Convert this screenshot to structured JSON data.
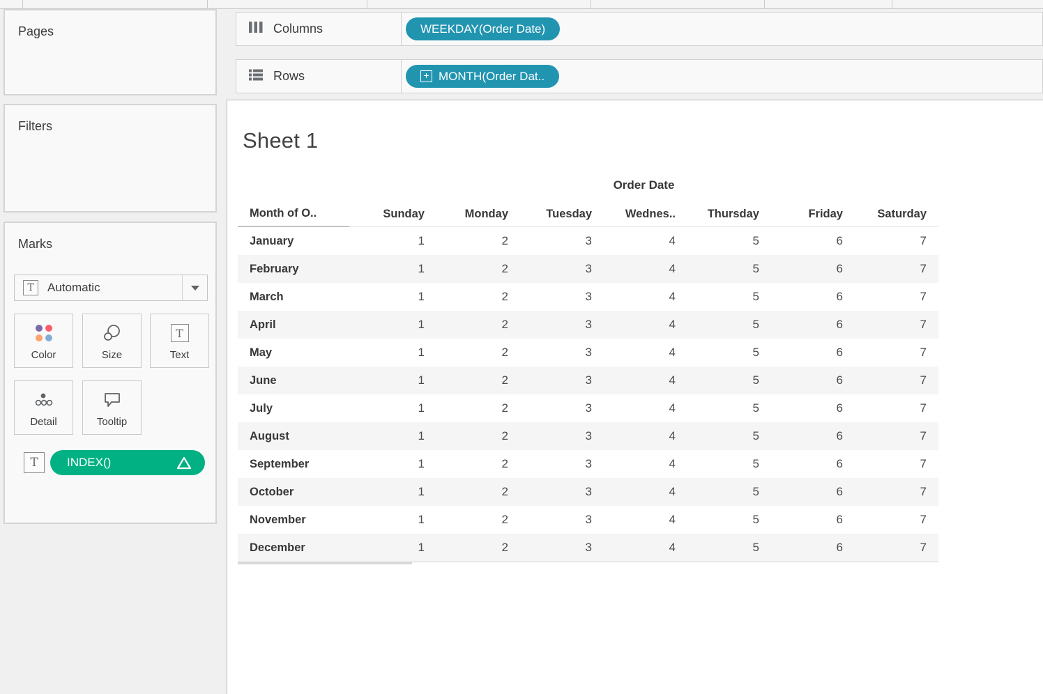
{
  "shelves": {
    "columns": {
      "label": "Columns",
      "pill": "WEEKDAY(Order Date)"
    },
    "rows": {
      "label": "Rows",
      "pill": "MONTH(Order Dat.."
    }
  },
  "panels": {
    "pages": {
      "title": "Pages"
    },
    "filters": {
      "title": "Filters"
    },
    "marks": {
      "title": "Marks",
      "mark_type": "Automatic",
      "buttons": {
        "color": "Color",
        "size": "Size",
        "text": "Text",
        "detail": "Detail",
        "tooltip": "Tooltip"
      },
      "text_pill": "INDEX()"
    }
  },
  "icons": {
    "columns_shelf": "three-vertical-bars",
    "rows_shelf": "list-lines",
    "mark_type": "boxed-T",
    "dropdown": "caret-down",
    "expand_field": "plus-box",
    "table_calc": "delta-triangle"
  },
  "colors": {
    "dimension_pill_teal": "#2194b0",
    "measure_pill_green": "#02b183",
    "row_band": "#f5f5f5",
    "color_dots": [
      "#7d6aa8",
      "#fb5c6e",
      "#fda46c",
      "#83aed3"
    ]
  },
  "sheet": {
    "title": "Sheet 1",
    "table": {
      "group_header": "Order Date",
      "corner_header": "Month of O..",
      "weekday_headers": [
        "Sunday",
        "Monday",
        "Tuesday",
        "Wednes..",
        "Thursday",
        "Friday",
        "Saturday"
      ],
      "rows": [
        {
          "month": "January",
          "values": [
            1,
            2,
            3,
            4,
            5,
            6,
            7
          ]
        },
        {
          "month": "February",
          "values": [
            1,
            2,
            3,
            4,
            5,
            6,
            7
          ]
        },
        {
          "month": "March",
          "values": [
            1,
            2,
            3,
            4,
            5,
            6,
            7
          ]
        },
        {
          "month": "April",
          "values": [
            1,
            2,
            3,
            4,
            5,
            6,
            7
          ]
        },
        {
          "month": "May",
          "values": [
            1,
            2,
            3,
            4,
            5,
            6,
            7
          ]
        },
        {
          "month": "June",
          "values": [
            1,
            2,
            3,
            4,
            5,
            6,
            7
          ]
        },
        {
          "month": "July",
          "values": [
            1,
            2,
            3,
            4,
            5,
            6,
            7
          ]
        },
        {
          "month": "August",
          "values": [
            1,
            2,
            3,
            4,
            5,
            6,
            7
          ]
        },
        {
          "month": "September",
          "values": [
            1,
            2,
            3,
            4,
            5,
            6,
            7
          ]
        },
        {
          "month": "October",
          "values": [
            1,
            2,
            3,
            4,
            5,
            6,
            7
          ]
        },
        {
          "month": "November",
          "values": [
            1,
            2,
            3,
            4,
            5,
            6,
            7
          ]
        },
        {
          "month": "December",
          "values": [
            1,
            2,
            3,
            4,
            5,
            6,
            7
          ]
        }
      ]
    }
  }
}
